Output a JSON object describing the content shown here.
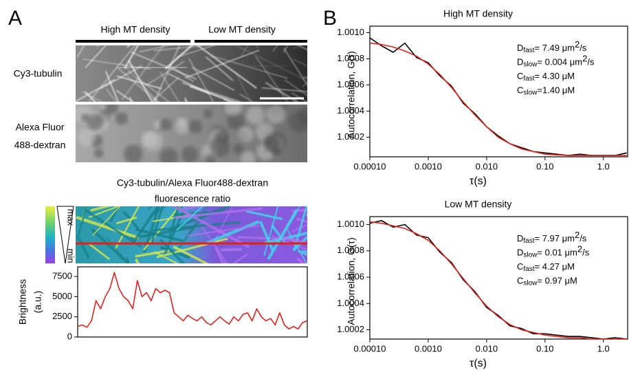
{
  "panels": {
    "a": "A",
    "b": "B"
  },
  "labels": {
    "high": "High MT density",
    "low": "Low MT density",
    "cy3": "Cy3-tubulin",
    "alexa": [
      "Alexa Fluor",
      "488-dextran"
    ],
    "ratio_title": [
      "Cy3-tubulin/Alexa Fluor488-dextran",
      "fluorescence ratio"
    ],
    "colorbar": {
      "max": "max",
      "min": "min"
    }
  },
  "chart_data": [
    {
      "type": "line",
      "y_label": [
        "Brightness",
        "(a.u.)"
      ],
      "color": "#e0201b",
      "ylim": [
        0,
        8700
      ],
      "yticks": [
        0,
        2500,
        5000,
        7500
      ],
      "values": [
        1300,
        1500,
        1200,
        2000,
        4500,
        3500,
        5000,
        6000,
        8000,
        6000,
        5000,
        4500,
        3500,
        7000,
        5000,
        5500,
        4500,
        6000,
        5500,
        5800,
        5500,
        3000,
        2500,
        2000,
        2700,
        2300,
        2000,
        2500,
        1800,
        1500,
        2000,
        2500,
        2000,
        1600,
        2500,
        2000,
        2800,
        3000,
        2000,
        3500,
        2500,
        2000,
        2300,
        1500,
        3000,
        1500,
        1000,
        1300,
        1000,
        1800,
        2000
      ]
    },
    {
      "type": "line",
      "title": "High MT density",
      "x_label": "τ(s)",
      "y_label": "Autocorrelation, G(τ)",
      "log_x": true,
      "xlim": [
        0.0001,
        2.6
      ],
      "ylim": [
        1.00005,
        1.00105
      ],
      "xticks": [
        {
          "value": 0.0001,
          "label": "0.00010"
        },
        {
          "value": 0.001,
          "label": "0.0010"
        },
        {
          "value": 0.01,
          "label": "0.010"
        },
        {
          "value": 0.1,
          "label": "0.10"
        },
        {
          "value": 1,
          "label": "1.0"
        }
      ],
      "yticks": [
        1.0002,
        1.0004,
        1.0006,
        1.0008,
        {
          "value": 1.001,
          "label": "1.0010"
        }
      ],
      "x": [
        0.0001,
        0.000158,
        0.000251,
        0.000398,
        0.000631,
        0.001,
        0.00158,
        0.00251,
        0.00398,
        0.00631,
        0.01,
        0.0158,
        0.0251,
        0.0398,
        0.0631,
        0.1,
        0.158,
        0.251,
        0.398,
        0.631,
        1,
        1.58,
        2.51
      ],
      "series": [
        {
          "color": "#000000",
          "values": [
            1.00096,
            1.0009,
            1.00085,
            1.00092,
            1.00081,
            1.00077,
            1.00067,
            1.00059,
            1.00046,
            1.00038,
            1.00028,
            1.00021,
            1.00015,
            1.00012,
            1.00009,
            1.00008,
            1.00007,
            1.00006,
            1.00007,
            1.00006,
            1.00006,
            1.00006,
            1.00008
          ]
        },
        {
          "color": "#e0201b",
          "values": [
            1.00092,
            1.00091,
            1.00089,
            1.00086,
            1.00082,
            1.00076,
            1.00068,
            1.00058,
            1.00047,
            1.00037,
            1.00028,
            1.0002,
            1.00015,
            1.00011,
            1.00009,
            1.00007,
            1.000065,
            1.00006,
            1.00006,
            1.00006,
            1.00006,
            1.00006,
            1.00006
          ]
        }
      ],
      "annotations": [
        {
          "main": "D",
          "sub": "fast",
          "rest": "= 7.49 μm",
          "sup": "2",
          "tail": "/s"
        },
        {
          "main": "D",
          "sub": "slow",
          "rest": "= 0.004 μm",
          "sup": "2",
          "tail": "/s"
        },
        {
          "main": "C",
          "sub": "fast",
          "rest": "= 4.30 μM"
        },
        {
          "main": "C",
          "sub": "slow",
          "rest": "=1.40 μM"
        }
      ]
    },
    {
      "type": "line",
      "title": "Low MT density",
      "x_label": "τ(s)",
      "y_label": "Autocorrelation, G(τ)",
      "log_x": true,
      "xlim": [
        0.0001,
        2.6
      ],
      "ylim": [
        1.00013,
        1.00106
      ],
      "xticks": [
        {
          "value": 0.0001,
          "label": "0.00010"
        },
        {
          "value": 0.001,
          "label": "0.0010"
        },
        {
          "value": 0.01,
          "label": "0.010"
        },
        {
          "value": 0.1,
          "label": "0.10"
        },
        {
          "value": 1,
          "label": "1.0"
        }
      ],
      "yticks": [
        1.0002,
        1.0004,
        1.0006,
        1.0008,
        {
          "value": 1.001,
          "label": "1.0010"
        }
      ],
      "x": [
        0.0001,
        0.000158,
        0.000251,
        0.000398,
        0.000631,
        0.001,
        0.00158,
        0.00251,
        0.00398,
        0.00631,
        0.01,
        0.0158,
        0.0251,
        0.0398,
        0.0631,
        0.1,
        0.158,
        0.251,
        0.398,
        0.631,
        1,
        1.58,
        2.51
      ],
      "series": [
        {
          "color": "#000000",
          "values": [
            1.00101,
            1.00103,
            1.00098,
            1.001,
            1.00092,
            1.0009,
            1.00079,
            1.00071,
            1.00058,
            1.00049,
            1.00037,
            1.00031,
            1.00023,
            1.00021,
            1.00017,
            1.00017,
            1.00016,
            1.00015,
            1.00015,
            1.00014,
            1.00013,
            1.00014,
            1.00013
          ]
        },
        {
          "color": "#e0201b",
          "values": [
            1.00102,
            1.00101,
            1.00099,
            1.00097,
            1.00093,
            1.00088,
            1.0008,
            1.0007,
            1.00059,
            1.00048,
            1.00038,
            1.0003,
            1.00024,
            1.0002,
            1.00018,
            1.00016,
            1.00015,
            1.00014,
            1.00014,
            1.00013,
            1.00013,
            1.00013,
            1.00013
          ]
        }
      ],
      "annotations": [
        {
          "main": "D",
          "sub": "fast",
          "rest": "=  7.97 μm",
          "sup": "2",
          "tail": "/s"
        },
        {
          "main": "D",
          "sub": "slow",
          "rest": "=  0.01 μm",
          "sup": "2",
          "tail": "/s"
        },
        {
          "main": "C",
          "sub": "fast",
          "rest": "= 4.27 μM"
        },
        {
          "main": "C",
          "sub": "slow",
          "rest": "= 0.97 μM"
        }
      ]
    }
  ]
}
